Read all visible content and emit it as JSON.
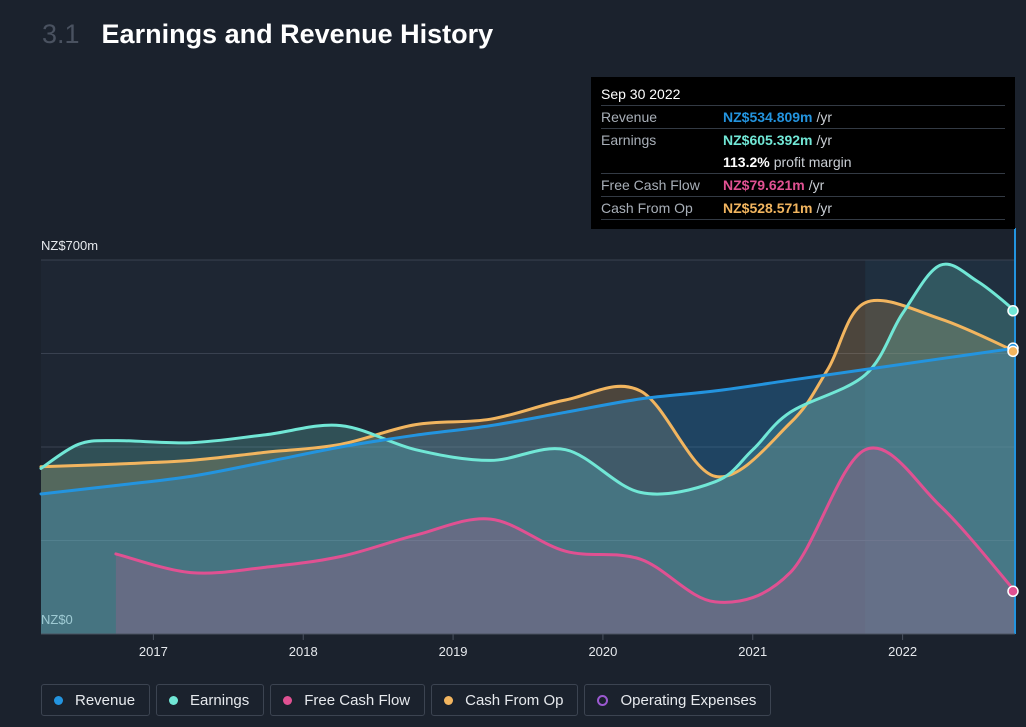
{
  "header": {
    "section_number": "3.1",
    "title": "Earnings and Revenue History"
  },
  "tooltip": {
    "date": "Sep 30 2022",
    "rows": [
      {
        "label": "Revenue",
        "value": "NZ$534.809m",
        "unit": "/yr",
        "color": "#2394df"
      },
      {
        "label": "Earnings",
        "value": "NZ$605.392m",
        "unit": "/yr",
        "color": "#71e7d6"
      },
      {
        "label": "",
        "value": "113.2%",
        "unit": "profit margin",
        "color": "#ffffff"
      },
      {
        "label": "Free Cash Flow",
        "value": "NZ$79.621m",
        "unit": "/yr",
        "color": "#e05192"
      },
      {
        "label": "Cash From Op",
        "value": "NZ$528.571m",
        "unit": "/yr",
        "color": "#f2b55f"
      }
    ]
  },
  "legend": [
    {
      "label": "Revenue",
      "color": "#2394df",
      "hollow": false
    },
    {
      "label": "Earnings",
      "color": "#71e7d6",
      "hollow": false
    },
    {
      "label": "Free Cash Flow",
      "color": "#e05192",
      "hollow": false
    },
    {
      "label": "Cash From Op",
      "color": "#f2b55f",
      "hollow": false
    },
    {
      "label": "Operating Expenses",
      "color": "#9b59d0",
      "hollow": true
    }
  ],
  "chart_data": {
    "type": "area",
    "title": "Earnings and Revenue History",
    "y_tick_labels": [
      "NZ$0",
      "NZ$700m"
    ],
    "ylim": [
      0,
      700
    ],
    "xlim": [
      2016.25,
      2022.75
    ],
    "x_tick_labels": [
      "2017",
      "2018",
      "2019",
      "2020",
      "2021",
      "2022"
    ],
    "x_ticks": [
      2017,
      2018,
      2019,
      2020,
      2021,
      2022
    ],
    "series": [
      {
        "name": "Revenue",
        "color": "#2394df",
        "x": [
          2016.25,
          2016.75,
          2017.25,
          2017.75,
          2018.25,
          2018.75,
          2019.25,
          2019.75,
          2020.25,
          2020.75,
          2021.25,
          2021.75,
          2022.25,
          2022.75
        ],
        "values": [
          262,
          278,
          295,
          322,
          350,
          372,
          390,
          415,
          440,
          455,
          475,
          495,
          515,
          535
        ]
      },
      {
        "name": "Earnings",
        "color": "#71e7d6",
        "x": [
          2016.25,
          2016.5,
          2016.75,
          2017.25,
          2017.75,
          2018.25,
          2018.75,
          2019.25,
          2019.75,
          2020.25,
          2020.75,
          2021.0,
          2021.25,
          2021.75,
          2022.0,
          2022.25,
          2022.5,
          2022.75
        ],
        "values": [
          310,
          355,
          362,
          358,
          373,
          390,
          345,
          325,
          345,
          265,
          285,
          345,
          415,
          485,
          600,
          690,
          660,
          605
        ]
      },
      {
        "name": "Free Cash Flow",
        "color": "#e05192",
        "x": [
          2016.75,
          2017.25,
          2017.75,
          2018.25,
          2018.75,
          2019.25,
          2019.75,
          2020.25,
          2020.75,
          2021.25,
          2021.75,
          2022.25,
          2022.75
        ],
        "values": [
          150,
          115,
          125,
          145,
          185,
          215,
          155,
          140,
          60,
          115,
          345,
          240,
          80
        ]
      },
      {
        "name": "Cash From Op",
        "color": "#f2b55f",
        "x": [
          2016.25,
          2016.75,
          2017.25,
          2017.75,
          2018.25,
          2018.75,
          2019.25,
          2019.75,
          2020.25,
          2020.75,
          2021.25,
          2021.5,
          2021.75,
          2022.25,
          2022.75
        ],
        "values": [
          313,
          318,
          325,
          340,
          355,
          392,
          402,
          438,
          455,
          295,
          395,
          495,
          620,
          590,
          529
        ]
      }
    ]
  }
}
